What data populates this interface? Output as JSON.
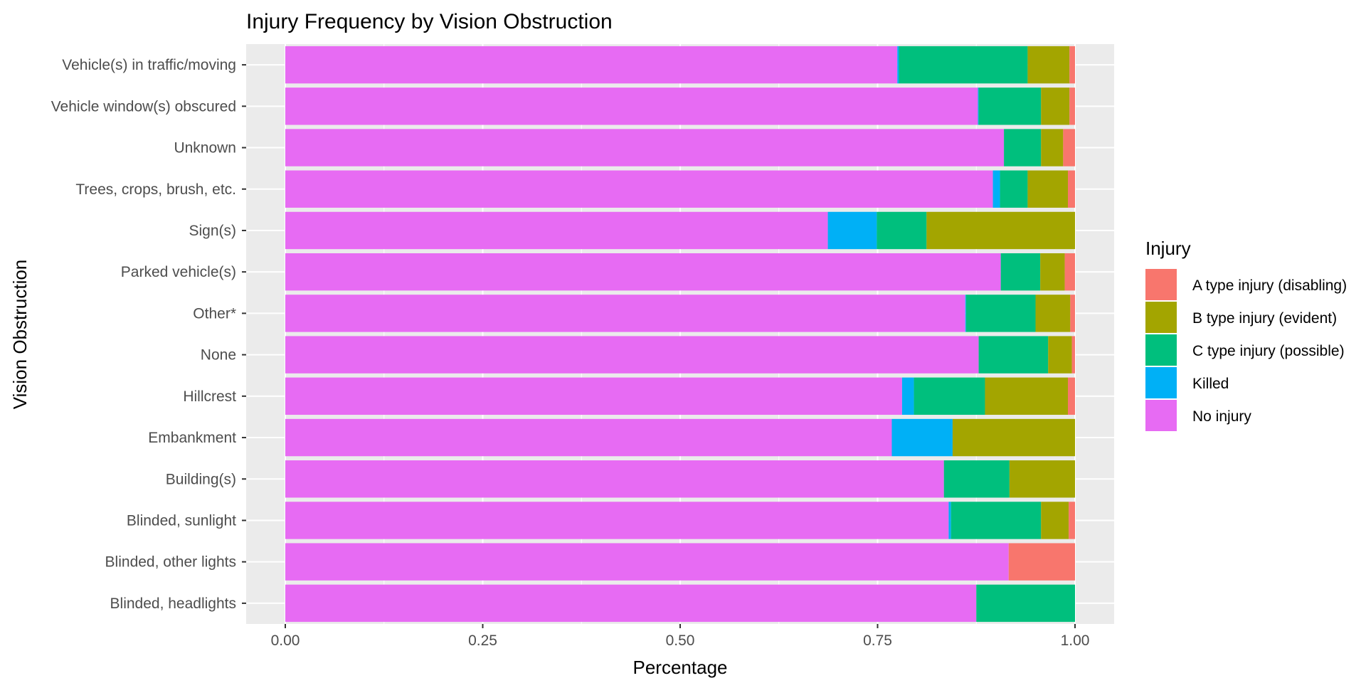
{
  "chart_data": {
    "type": "bar",
    "orientation": "horizontal",
    "stacked": true,
    "title": "Injury Frequency by Vision Obstruction",
    "xlabel": "Percentage",
    "ylabel": "Vision Obstruction",
    "xlim": [
      0,
      1
    ],
    "x_ticks": [
      0.0,
      0.25,
      0.5,
      0.75,
      1.0
    ],
    "x_tick_labels": [
      "0.00",
      "0.25",
      "0.50",
      "0.75",
      "1.00"
    ],
    "grid": true,
    "legend": {
      "title": "Injury",
      "position": "right"
    },
    "categories": [
      "Vehicle(s) in traffic/moving",
      "Vehicle window(s) obscured",
      "Unknown",
      "Trees, crops, brush, etc.",
      "Sign(s)",
      "Parked vehicle(s)",
      "Other*",
      "None",
      "Hillcrest",
      "Embankment",
      "Building(s)",
      "Blinded, sunlight",
      "Blinded, other lights",
      "Blinded, headlights"
    ],
    "series": [
      {
        "name": "A type injury (disabling)",
        "color": "#F8766D",
        "values": [
          0.007,
          0.007,
          0.015,
          0.009,
          0.0,
          0.013,
          0.006,
          0.004,
          0.009,
          0.0,
          0.0,
          0.008,
          0.084,
          0.0
        ]
      },
      {
        "name": "B type injury (evident)",
        "color": "#A3A500",
        "values": [
          0.053,
          0.036,
          0.028,
          0.051,
          0.188,
          0.031,
          0.044,
          0.03,
          0.105,
          0.155,
          0.083,
          0.035,
          0.0,
          0.0
        ]
      },
      {
        "name": "C type injury (possible)",
        "color": "#00BF7D",
        "values": [
          0.163,
          0.079,
          0.047,
          0.035,
          0.063,
          0.05,
          0.088,
          0.088,
          0.09,
          0.0,
          0.083,
          0.114,
          0.0,
          0.125
        ]
      },
      {
        "name": "Killed",
        "color": "#00B0F6",
        "values": [
          0.002,
          0.001,
          0.0,
          0.009,
          0.062,
          0.0,
          0.001,
          0.0,
          0.015,
          0.077,
          0.0,
          0.003,
          0.0,
          0.0
        ]
      },
      {
        "name": "No injury",
        "color": "#E76BF3",
        "values": [
          0.775,
          0.877,
          0.91,
          0.896,
          0.687,
          0.906,
          0.861,
          0.878,
          0.781,
          0.768,
          0.834,
          0.84,
          0.916,
          0.875
        ]
      }
    ],
    "stack_order_left_to_right": [
      "No injury",
      "Killed",
      "C type injury (possible)",
      "B type injury (evident)",
      "A type injury (disabling)"
    ]
  }
}
